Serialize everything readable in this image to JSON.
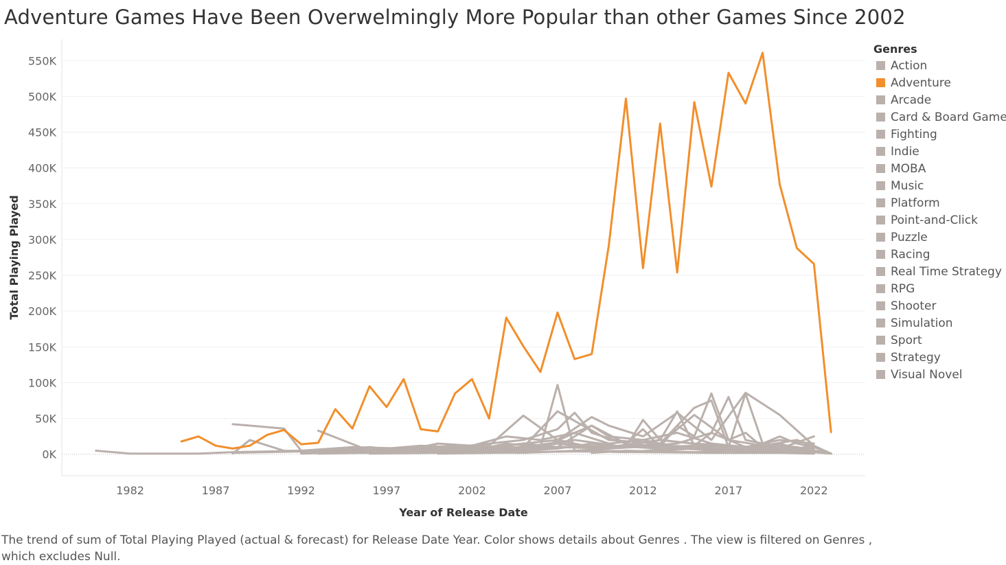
{
  "chart_data": {
    "type": "line",
    "title": "Adventure Games Have Been Overwelmingly  More Popular than other Games Since 2002",
    "xlabel": "Year of Release Date",
    "ylabel": "Total Playing Played",
    "xlim": [
      1978,
      2025
    ],
    "ylim": [
      -30000,
      580000
    ],
    "x_ticks": [
      1982,
      1987,
      1992,
      1997,
      2002,
      2007,
      2012,
      2017,
      2022
    ],
    "y_ticks": [
      0,
      50000,
      100000,
      150000,
      200000,
      250000,
      300000,
      350000,
      400000,
      450000,
      500000,
      550000
    ],
    "y_tick_labels": [
      "0K",
      "50K",
      "100K",
      "150K",
      "200K",
      "250K",
      "300K",
      "350K",
      "400K",
      "450K",
      "500K",
      "550K"
    ],
    "grid": true,
    "legend_position": "right",
    "legend_title": "Genres",
    "highlight_color": "#f28e2b",
    "base_color": "#bab0ac",
    "series": [
      {
        "name": "Action",
        "color": "#bab0ac",
        "x": [
          1993,
          1995,
          1997,
          1999,
          2001,
          2003,
          2005,
          2007,
          2008,
          2009,
          2011,
          2012,
          2013,
          2014,
          2015,
          2016,
          2017,
          2018,
          2019,
          2020,
          2021,
          2022,
          2023
        ],
        "y": [
          2000,
          4000,
          5000,
          8000,
          10000,
          15000,
          20000,
          35000,
          58000,
          30000,
          15000,
          35000,
          10000,
          40000,
          25000,
          85000,
          20000,
          30000,
          10000,
          15000,
          8000,
          12000,
          1000
        ]
      },
      {
        "name": "Adventure",
        "color": "#f28e2b",
        "x": [
          1985,
          1986,
          1987,
          1988,
          1989,
          1990,
          1991,
          1992,
          1993,
          1994,
          1995,
          1996,
          1997,
          1998,
          1999,
          2000,
          2001,
          2002,
          2003,
          2004,
          2005,
          2006,
          2007,
          2008,
          2009,
          2010,
          2011,
          2012,
          2013,
          2014,
          2015,
          2016,
          2017,
          2018,
          2019,
          2020,
          2021,
          2022,
          2023
        ],
        "y": [
          18000,
          25000,
          12000,
          8000,
          12000,
          27000,
          34000,
          14000,
          16000,
          63000,
          36000,
          95000,
          66000,
          105000,
          35000,
          32000,
          85000,
          105000,
          50000,
          191000,
          151000,
          115000,
          198000,
          133000,
          140000,
          292000,
          497000,
          260000,
          462000,
          254000,
          492000,
          374000,
          533000,
          490000,
          561000,
          377000,
          288000,
          266000,
          31000
        ]
      },
      {
        "name": "Arcade",
        "color": "#bab0ac",
        "x": [
          1980,
          1982,
          1984,
          1986,
          1988,
          1990,
          1992,
          1995,
          1998,
          2000,
          2003,
          2007,
          2010,
          2013,
          2017,
          2022
        ],
        "y": [
          5000,
          1000,
          1000,
          1000,
          3000,
          4000,
          5000,
          4000,
          5000,
          6000,
          4000,
          10000,
          8000,
          12000,
          10000,
          8000
        ]
      },
      {
        "name": "Card & Board Game",
        "color": "#bab0ac",
        "x": [
          1993,
          1996,
          1999,
          2002,
          2005,
          2008,
          2011,
          2014,
          2017,
          2020,
          2022
        ],
        "y": [
          1000,
          2000,
          2000,
          3000,
          2000,
          5000,
          3000,
          8000,
          5000,
          4000,
          2000
        ]
      },
      {
        "name": "Fighting",
        "color": "#bab0ac",
        "x": [
          1993,
          1995,
          1997,
          1999,
          2001,
          2003,
          2005,
          2007,
          2009,
          2011,
          2013,
          2015,
          2017,
          2019,
          2021,
          2023
        ],
        "y": [
          3000,
          5000,
          8000,
          10000,
          6000,
          5000,
          8000,
          15000,
          10000,
          12000,
          20000,
          15000,
          12000,
          8000,
          10000,
          1000
        ]
      },
      {
        "name": "Indie",
        "color": "#bab0ac",
        "x": [
          2003,
          2005,
          2007,
          2009,
          2011,
          2012,
          2013,
          2014,
          2015,
          2016,
          2017,
          2018,
          2019,
          2020,
          2021,
          2022,
          2023
        ],
        "y": [
          2000,
          5000,
          8000,
          15000,
          10000,
          48000,
          20000,
          60000,
          12000,
          30000,
          80000,
          20000,
          15000,
          25000,
          15000,
          10000,
          1000
        ]
      },
      {
        "name": "MOBA",
        "color": "#bab0ac",
        "x": [
          2009,
          2011,
          2013,
          2015,
          2017,
          2019,
          2021,
          2022
        ],
        "y": [
          2000,
          5000,
          4000,
          3000,
          5000,
          3000,
          2000,
          1000
        ]
      },
      {
        "name": "Music",
        "color": "#bab0ac",
        "x": [
          1996,
          2000,
          2004,
          2008,
          2012,
          2016,
          2020,
          2022
        ],
        "y": [
          1000,
          2000,
          3000,
          4000,
          3000,
          2000,
          2000,
          1000
        ]
      },
      {
        "name": "Platform",
        "color": "#bab0ac",
        "x": [
          1988,
          1991,
          1992,
          1995,
          1998,
          2000,
          2002,
          2004,
          2006,
          2007,
          2008,
          2010,
          2013,
          2015,
          2016,
          2017,
          2018,
          2019,
          2021,
          2022
        ],
        "y": [
          42000,
          36000,
          5000,
          10000,
          8000,
          10000,
          5000,
          15000,
          10000,
          97000,
          5000,
          8000,
          15000,
          65000,
          75000,
          10000,
          85000,
          15000,
          10000,
          5000
        ]
      },
      {
        "name": "Point-and-Click",
        "color": "#bab0ac",
        "x": [
          1988,
          1989,
          1991,
          1993,
          1995,
          1997,
          1999,
          2001,
          2003,
          2005,
          2007,
          2009,
          2011,
          2013,
          2015,
          2017,
          2019,
          2021,
          2023
        ],
        "y": [
          1000,
          20000,
          5000,
          4000,
          6000,
          5000,
          10000,
          8000,
          10000,
          15000,
          20000,
          10000,
          12000,
          8000,
          10000,
          5000,
          8000,
          5000,
          1000
        ]
      },
      {
        "name": "Puzzle",
        "color": "#bab0ac",
        "x": [
          1993,
          1996,
          1999,
          2002,
          2005,
          2008,
          2011,
          2014,
          2016,
          2018,
          2020,
          2022
        ],
        "y": [
          33000,
          5000,
          8000,
          5000,
          10000,
          20000,
          10000,
          15000,
          30000,
          10000,
          8000,
          25000
        ]
      },
      {
        "name": "Racing",
        "color": "#bab0ac",
        "x": [
          1992,
          1995,
          1998,
          2001,
          2004,
          2006,
          2008,
          2010,
          2012,
          2014,
          2016,
          2018,
          2020,
          2022
        ],
        "y": [
          2000,
          5000,
          8000,
          12000,
          10000,
          8000,
          30000,
          15000,
          20000,
          10000,
          15000,
          10000,
          12000,
          2000
        ]
      },
      {
        "name": "Real Time Strategy",
        "color": "#bab0ac",
        "x": [
          1995,
          1997,
          1999,
          2001,
          2003,
          2005,
          2007,
          2009,
          2011,
          2013,
          2015,
          2017,
          2019,
          2021,
          2023
        ],
        "y": [
          3000,
          8000,
          12000,
          10000,
          8000,
          15000,
          10000,
          40000,
          15000,
          10000,
          12000,
          8000,
          5000,
          5000,
          1000
        ]
      },
      {
        "name": "RPG",
        "color": "#bab0ac",
        "x": [
          1988,
          1990,
          1992,
          1994,
          1996,
          1998,
          2000,
          2002,
          2004,
          2006,
          2008,
          2009,
          2010,
          2012,
          2014,
          2016,
          2018,
          2020,
          2022
        ],
        "y": [
          2000,
          3000,
          4000,
          6000,
          10000,
          5000,
          15000,
          12000,
          25000,
          20000,
          30000,
          40000,
          25000,
          20000,
          30000,
          15000,
          10000,
          20000,
          15000
        ]
      },
      {
        "name": "Shooter",
        "color": "#bab0ac",
        "x": [
          1993,
          1995,
          1997,
          1999,
          2001,
          2003,
          2005,
          2007,
          2009,
          2010,
          2012,
          2014,
          2016,
          2018,
          2020,
          2022
        ],
        "y": [
          5000,
          8000,
          5000,
          10000,
          8000,
          12000,
          54000,
          20000,
          52000,
          40000,
          25000,
          58000,
          20000,
          86000,
          55000,
          12000
        ]
      },
      {
        "name": "Simulation",
        "color": "#bab0ac",
        "x": [
          1992,
          1995,
          1998,
          2001,
          2004,
          2007,
          2010,
          2013,
          2016,
          2019,
          2022
        ],
        "y": [
          1000,
          3000,
          5000,
          4000,
          8000,
          15000,
          10000,
          20000,
          12000,
          10000,
          5000
        ]
      },
      {
        "name": "Sport",
        "color": "#bab0ac",
        "x": [
          1992,
          1995,
          1998,
          2001,
          2004,
          2007,
          2010,
          2013,
          2016,
          2019,
          2022
        ],
        "y": [
          2000,
          4000,
          5000,
          8000,
          5000,
          10000,
          12000,
          8000,
          10000,
          5000,
          3000
        ]
      },
      {
        "name": "Strategy",
        "color": "#bab0ac",
        "x": [
          1993,
          1996,
          1999,
          2002,
          2005,
          2007,
          2010,
          2013,
          2015,
          2017,
          2019,
          2021,
          2023
        ],
        "y": [
          3000,
          5000,
          6000,
          8000,
          10000,
          60000,
          20000,
          15000,
          55000,
          20000,
          12000,
          20000,
          1000
        ]
      },
      {
        "name": "Visual Novel",
        "color": "#bab0ac",
        "x": [
          2000,
          2003,
          2006,
          2009,
          2012,
          2015,
          2018,
          2021,
          2023
        ],
        "y": [
          1000,
          2000,
          3000,
          5000,
          4000,
          8000,
          6000,
          5000,
          1000
        ]
      }
    ]
  },
  "caption": "The trend of sum of Total Playing Played (actual & forecast)  for Release Date Year.  Color shows details about Genres . The view is filtered on Genres , which excludes Null."
}
